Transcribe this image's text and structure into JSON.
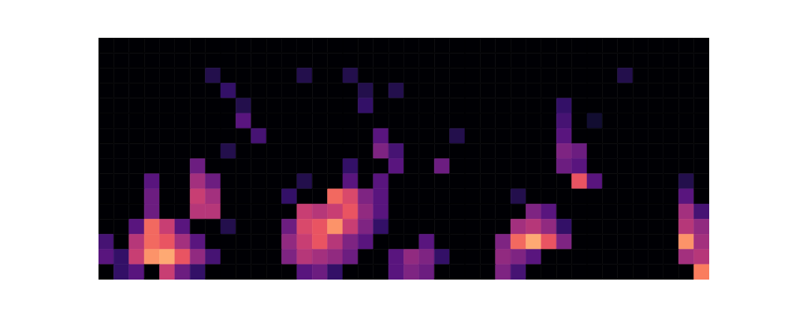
{
  "chart_data": {
    "type": "heatmap",
    "tick_labels": false,
    "color": "magma",
    "color_range": [
      0,
      1
    ],
    "cells": [
      [
        0,
        0,
        0,
        0,
        0,
        0,
        0,
        0,
        0,
        0,
        0,
        0,
        0,
        0,
        0,
        0,
        0,
        0,
        0,
        0,
        0,
        0,
        0,
        0,
        0,
        0,
        0,
        0,
        0,
        0,
        0,
        0,
        0,
        0,
        0,
        0,
        0,
        0,
        0,
        0
      ],
      [
        0,
        0,
        0,
        0,
        0,
        0,
        0,
        0,
        0,
        0,
        0,
        0,
        0,
        0,
        0,
        0,
        0,
        0,
        0,
        0,
        0,
        0,
        0,
        0,
        0,
        0,
        0,
        0,
        0,
        0,
        0,
        0,
        0,
        0,
        0,
        0,
        0,
        0,
        0,
        0
      ],
      [
        0,
        0,
        0,
        0,
        0,
        0,
        0,
        0.15,
        0,
        0,
        0,
        0,
        0,
        0.15,
        0,
        0,
        0.15,
        0,
        0,
        0,
        0,
        0,
        0,
        0,
        0,
        0,
        0,
        0,
        0,
        0,
        0,
        0,
        0,
        0,
        0.15,
        0,
        0,
        0,
        0,
        0
      ],
      [
        0,
        0,
        0,
        0,
        0,
        0,
        0,
        0,
        0.2,
        0,
        0,
        0,
        0,
        0,
        0,
        0,
        0,
        0.15,
        0,
        0.15,
        0,
        0,
        0,
        0,
        0,
        0,
        0,
        0,
        0,
        0,
        0,
        0,
        0,
        0,
        0,
        0,
        0,
        0,
        0,
        0
      ],
      [
        0,
        0,
        0,
        0,
        0,
        0,
        0,
        0,
        0,
        0.15,
        0,
        0,
        0,
        0,
        0,
        0,
        0,
        0.2,
        0,
        0,
        0,
        0,
        0,
        0,
        0,
        0,
        0,
        0,
        0,
        0,
        0.2,
        0,
        0,
        0,
        0,
        0,
        0,
        0,
        0,
        0
      ],
      [
        0,
        0,
        0,
        0,
        0,
        0,
        0,
        0,
        0,
        0.3,
        0,
        0,
        0,
        0,
        0,
        0,
        0,
        0,
        0,
        0,
        0,
        0,
        0,
        0,
        0,
        0,
        0,
        0,
        0,
        0,
        0.25,
        0,
        0.1,
        0,
        0,
        0,
        0,
        0,
        0,
        0
      ],
      [
        0,
        0,
        0,
        0,
        0,
        0,
        0,
        0,
        0,
        0,
        0.25,
        0,
        0,
        0,
        0,
        0,
        0,
        0,
        0.3,
        0,
        0,
        0,
        0,
        0.15,
        0,
        0,
        0,
        0,
        0,
        0,
        0.3,
        0,
        0,
        0,
        0,
        0,
        0,
        0,
        0,
        0
      ],
      [
        0,
        0,
        0,
        0,
        0,
        0,
        0,
        0,
        0.15,
        0,
        0,
        0,
        0,
        0,
        0,
        0,
        0,
        0,
        0.4,
        0.25,
        0,
        0,
        0,
        0,
        0,
        0,
        0,
        0,
        0,
        0,
        0.4,
        0.35,
        0,
        0,
        0,
        0,
        0,
        0,
        0,
        0
      ],
      [
        0,
        0,
        0,
        0,
        0,
        0,
        0.35,
        0,
        0,
        0,
        0,
        0,
        0,
        0,
        0,
        0,
        0.2,
        0,
        0,
        0.3,
        0,
        0,
        0.35,
        0,
        0,
        0,
        0,
        0,
        0,
        0,
        0.35,
        0.3,
        0,
        0,
        0,
        0,
        0,
        0,
        0,
        0
      ],
      [
        0,
        0,
        0,
        0.3,
        0,
        0,
        0.5,
        0.35,
        0,
        0,
        0,
        0,
        0,
        0.15,
        0,
        0,
        0.3,
        0,
        0.3,
        0,
        0,
        0,
        0,
        0,
        0,
        0,
        0,
        0,
        0,
        0,
        0,
        0.7,
        0.3,
        0,
        0,
        0,
        0,
        0,
        0.15,
        0
      ],
      [
        0,
        0,
        0,
        0.35,
        0,
        0,
        0.6,
        0.5,
        0,
        0,
        0,
        0,
        0.2,
        0,
        0,
        0.75,
        0.65,
        0.4,
        0.3,
        0,
        0,
        0,
        0,
        0,
        0,
        0,
        0,
        0.15,
        0,
        0,
        0,
        0,
        0,
        0,
        0,
        0,
        0,
        0,
        0.3,
        0
      ],
      [
        0,
        0,
        0,
        0.35,
        0,
        0,
        0.55,
        0.55,
        0,
        0,
        0,
        0,
        0,
        0.6,
        0.55,
        0.6,
        0.7,
        0.45,
        0.3,
        0,
        0,
        0,
        0,
        0,
        0,
        0,
        0,
        0,
        0.4,
        0.3,
        0,
        0,
        0,
        0,
        0,
        0,
        0,
        0,
        0.5,
        0.25
      ],
      [
        0,
        0,
        0.3,
        0.75,
        0.6,
        0.3,
        0,
        0,
        0.15,
        0,
        0,
        0,
        0.35,
        0.65,
        0.7,
        0.85,
        0.6,
        0.4,
        0.2,
        0,
        0,
        0,
        0,
        0,
        0,
        0,
        0,
        0.5,
        0.55,
        0.45,
        0.2,
        0,
        0,
        0,
        0,
        0,
        0,
        0,
        0.55,
        0.45
      ],
      [
        0.25,
        0,
        0.55,
        0.75,
        0.7,
        0.5,
        0.3,
        0,
        0,
        0,
        0,
        0,
        0.45,
        0.6,
        0.7,
        0.55,
        0.4,
        0.3,
        0,
        0,
        0,
        0.3,
        0,
        0,
        0,
        0,
        0.4,
        0.75,
        0.9,
        0.7,
        0.4,
        0,
        0,
        0,
        0,
        0,
        0,
        0,
        0.85,
        0.5
      ],
      [
        0.3,
        0.2,
        0.6,
        0.85,
        0.9,
        0.7,
        0.45,
        0.25,
        0,
        0,
        0,
        0,
        0.4,
        0.55,
        0.5,
        0.45,
        0.35,
        0,
        0,
        0.3,
        0.45,
        0.4,
        0.2,
        0,
        0,
        0,
        0.45,
        0.4,
        0.3,
        0,
        0,
        0,
        0,
        0,
        0,
        0,
        0,
        0,
        0.5,
        0.55
      ],
      [
        0,
        0.2,
        0.3,
        0,
        0.6,
        0.35,
        0.2,
        0,
        0,
        0,
        0,
        0,
        0,
        0.3,
        0.35,
        0.2,
        0,
        0,
        0,
        0.3,
        0.4,
        0.35,
        0,
        0,
        0,
        0,
        0.4,
        0.25,
        0,
        0,
        0,
        0,
        0,
        0,
        0,
        0,
        0,
        0,
        0,
        0.8
      ]
    ]
  }
}
